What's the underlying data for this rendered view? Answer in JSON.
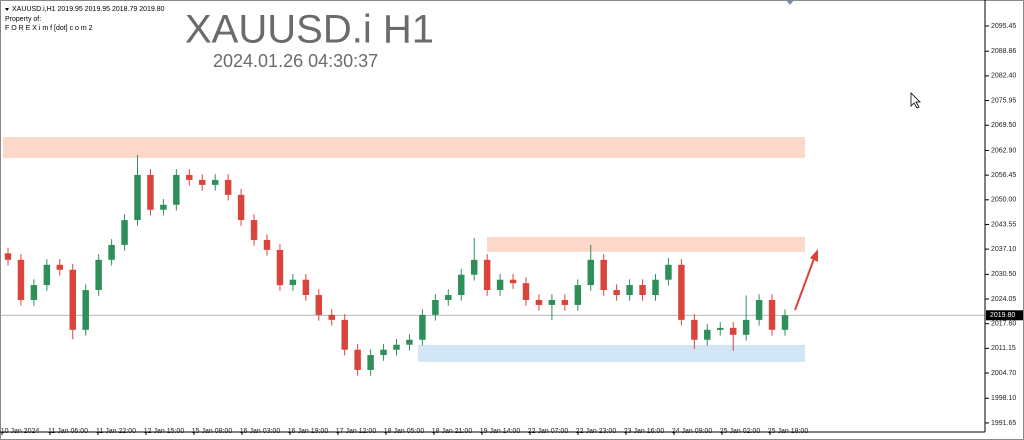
{
  "chart_data": {
    "type": "candlestick",
    "header": [
      "XAUUSD.i,H1  2019.95 2019.95 2018.79 2019.80",
      "Property of:",
      "F O R E X i m f [dot] c o m 2"
    ],
    "title": "XAUUSD.i H1",
    "subtitle": "2024.01.26 04:30:37",
    "up_color": "#2f8f5b",
    "down_color": "#d9453c",
    "ylim": [
      1989.8,
      2102.25
    ],
    "yticks": [
      2095.45,
      2088.86,
      {
        "value": 2082.4,
        "label": "2082.40"
      },
      2075.95,
      {
        "value": 2069.5,
        "label": "2069.50"
      },
      {
        "value": 2062.9,
        "label": "2062.90"
      },
      2056.45,
      {
        "value": 2050,
        "label": "2050.00"
      },
      2043.55,
      {
        "value": 2037.1,
        "label": "2037.10"
      },
      {
        "value": 2030.5,
        "label": "2030.50"
      },
      2024.05,
      {
        "value": 2017.6,
        "label": "2017.60"
      },
      2011.15,
      {
        "value": 2004.7,
        "label": "2004.70"
      },
      {
        "value": 1998.1,
        "label": "1998.10"
      },
      1991.65
    ],
    "current_price": {
      "value": 2019.8,
      "label": "2019.80"
    },
    "time_labels": [
      "10 Jan 2024",
      "11 Jan 06:00",
      "11 Jan 22:00",
      "12 Jan 15:00",
      "15 Jan 08:00",
      "16 Jan 03:00",
      "16 Jan 19:00",
      "17 Jan 12:00",
      "18 Jan 05:00",
      "18 Jan 21:00",
      "19 Jan 14:00",
      "22 Jan 07:00",
      "22 Jan 23:00",
      "23 Jan 16:00",
      "24 Jan 09:00",
      "25 Jan 02:00",
      "25 Jan 18:00"
    ],
    "open": [
      2036.0,
      2034.3,
      2023.8,
      2027.7,
      2033.0,
      2031.7,
      2016.0,
      2026.4,
      2034.3,
      2038.2,
      2044.7,
      2056.5,
      2047.4,
      2048.7,
      2056.5,
      2055.2,
      2053.9,
      2055.2,
      2051.3,
      2044.7,
      2039.5,
      2036.9,
      2027.7,
      2029.1,
      2025.1,
      2019.9,
      2018.6,
      2010.8,
      2005.5,
      2009.4,
      2010.8,
      2012.1,
      2013.4,
      2019.9,
      2023.8,
      2025.1,
      2030.4,
      2034.3,
      2026.4,
      2029.1,
      2028.2,
      2023.8,
      2022.5,
      2023.8,
      2022.5,
      2027.7,
      2034.3,
      2026.4,
      2025.1,
      2027.7,
      2025.1,
      2029.1,
      2033.0,
      2018.6,
      2013.4,
      2016.0,
      2016.5,
      2014.7,
      2018.6,
      2023.8,
      2016.0
    ],
    "high": [
      2037.5,
      2035.8,
      2029.2,
      2034.5,
      2034.5,
      2033.2,
      2027.9,
      2035.8,
      2039.7,
      2046.2,
      2061.7,
      2058.0,
      2050.2,
      2058.0,
      2058.0,
      2056.7,
      2056.7,
      2056.7,
      2052.8,
      2046.2,
      2041.0,
      2038.4,
      2030.6,
      2030.6,
      2026.6,
      2021.4,
      2020.1,
      2012.3,
      2010.9,
      2012.3,
      2013.6,
      2014.9,
      2021.4,
      2025.3,
      2026.6,
      2031.9,
      2040.0,
      2035.8,
      2030.6,
      2030.6,
      2029.7,
      2025.3,
      2025.3,
      2025.3,
      2029.2,
      2038.2,
      2035.8,
      2027.9,
      2029.2,
      2029.2,
      2030.6,
      2034.8,
      2034.5,
      2020.1,
      2017.5,
      2018.0,
      2018.0,
      2025.0,
      2025.3,
      2025.3,
      2021.3
    ],
    "low": [
      2032.8,
      2022.3,
      2022.3,
      2026.2,
      2030.2,
      2013.5,
      2014.5,
      2024.9,
      2032.8,
      2036.7,
      2043.2,
      2045.9,
      2045.9,
      2047.2,
      2053.7,
      2052.4,
      2052.4,
      2049.8,
      2043.2,
      2038.0,
      2035.4,
      2026.2,
      2026.2,
      2023.6,
      2018.4,
      2017.1,
      2009.3,
      2004.0,
      2004.0,
      2007.9,
      2009.3,
      2010.6,
      2011.9,
      2018.4,
      2022.3,
      2023.6,
      2028.9,
      2024.9,
      2024.9,
      2026.7,
      2022.3,
      2021.0,
      2018.5,
      2021.0,
      2021.0,
      2026.2,
      2024.9,
      2023.6,
      2023.6,
      2023.6,
      2023.6,
      2027.6,
      2017.1,
      2011.0,
      2011.9,
      2014.5,
      2010.5,
      2013.2,
      2017.1,
      2014.5,
      2014.5
    ],
    "close": [
      2034.3,
      2023.8,
      2027.7,
      2033.0,
      2031.7,
      2016.0,
      2026.4,
      2034.3,
      2038.2,
      2044.7,
      2056.5,
      2047.4,
      2048.7,
      2056.5,
      2055.2,
      2053.9,
      2055.2,
      2051.3,
      2044.7,
      2039.5,
      2036.9,
      2027.7,
      2029.1,
      2025.1,
      2019.9,
      2018.6,
      2010.8,
      2005.5,
      2009.4,
      2010.8,
      2012.1,
      2013.4,
      2019.9,
      2023.8,
      2025.1,
      2030.4,
      2034.3,
      2026.4,
      2029.1,
      2028.2,
      2023.8,
      2022.5,
      2023.8,
      2022.5,
      2027.7,
      2034.3,
      2026.4,
      2025.1,
      2027.7,
      2025.1,
      2029.1,
      2033.0,
      2018.6,
      2013.4,
      2016.0,
      2016.5,
      2014.7,
      2018.6,
      2023.8,
      2016.0,
      2019.8
    ],
    "zones": [
      {
        "top": 2066.4,
        "bottom": 2060.95,
        "color": "#fbd8c9"
      },
      {
        "top": 2040.3,
        "bottom": 2036.4,
        "color": "#fbd8c9"
      },
      {
        "top": 2012.05,
        "bottom": 2007.6,
        "color": "#d3e6f6"
      }
    ]
  }
}
